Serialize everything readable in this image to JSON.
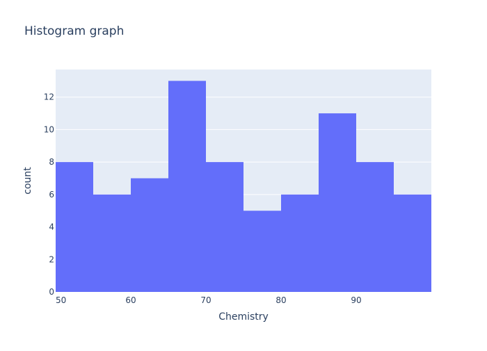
{
  "chart_data": {
    "type": "bar",
    "title": "Histogram graph",
    "xlabel": "Chemistry",
    "ylabel": "count",
    "bin_edges": [
      50,
      55,
      60,
      65,
      70,
      75,
      80,
      85,
      90,
      95,
      100
    ],
    "values": [
      8,
      6,
      7,
      13,
      8,
      5,
      6,
      11,
      8,
      6
    ],
    "xlim": [
      50,
      100
    ],
    "ylim": [
      0,
      13.7
    ],
    "x_ticks": [
      50,
      60,
      70,
      80,
      90
    ],
    "y_ticks": [
      0,
      2,
      4,
      6,
      8,
      10,
      12
    ],
    "grid": true,
    "bar_color": "#636efa",
    "plot_bg": "#e5ecf6"
  }
}
